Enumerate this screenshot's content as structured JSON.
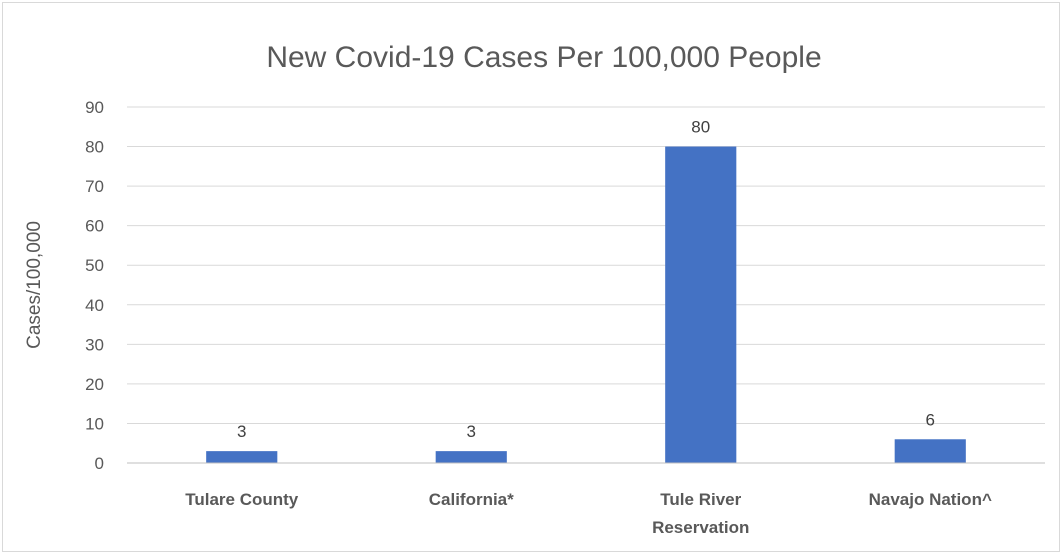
{
  "chart_data": {
    "type": "bar",
    "title": "New Covid-19 Cases Per 100,000 People",
    "xlabel": "",
    "ylabel": "Cases/100,000",
    "categories": [
      [
        "Tulare County"
      ],
      [
        "California*"
      ],
      [
        "Tule River",
        "Reservation"
      ],
      [
        "Navajo Nation^"
      ]
    ],
    "values": [
      3,
      3,
      80,
      6
    ],
    "data_labels": [
      "3",
      "3",
      "80",
      "6"
    ],
    "ylim": [
      0,
      90
    ],
    "yticks": [
      0,
      10,
      20,
      30,
      40,
      50,
      60,
      70,
      80,
      90
    ],
    "grid": true,
    "legend": "none",
    "bar_color": "#4472c4"
  }
}
